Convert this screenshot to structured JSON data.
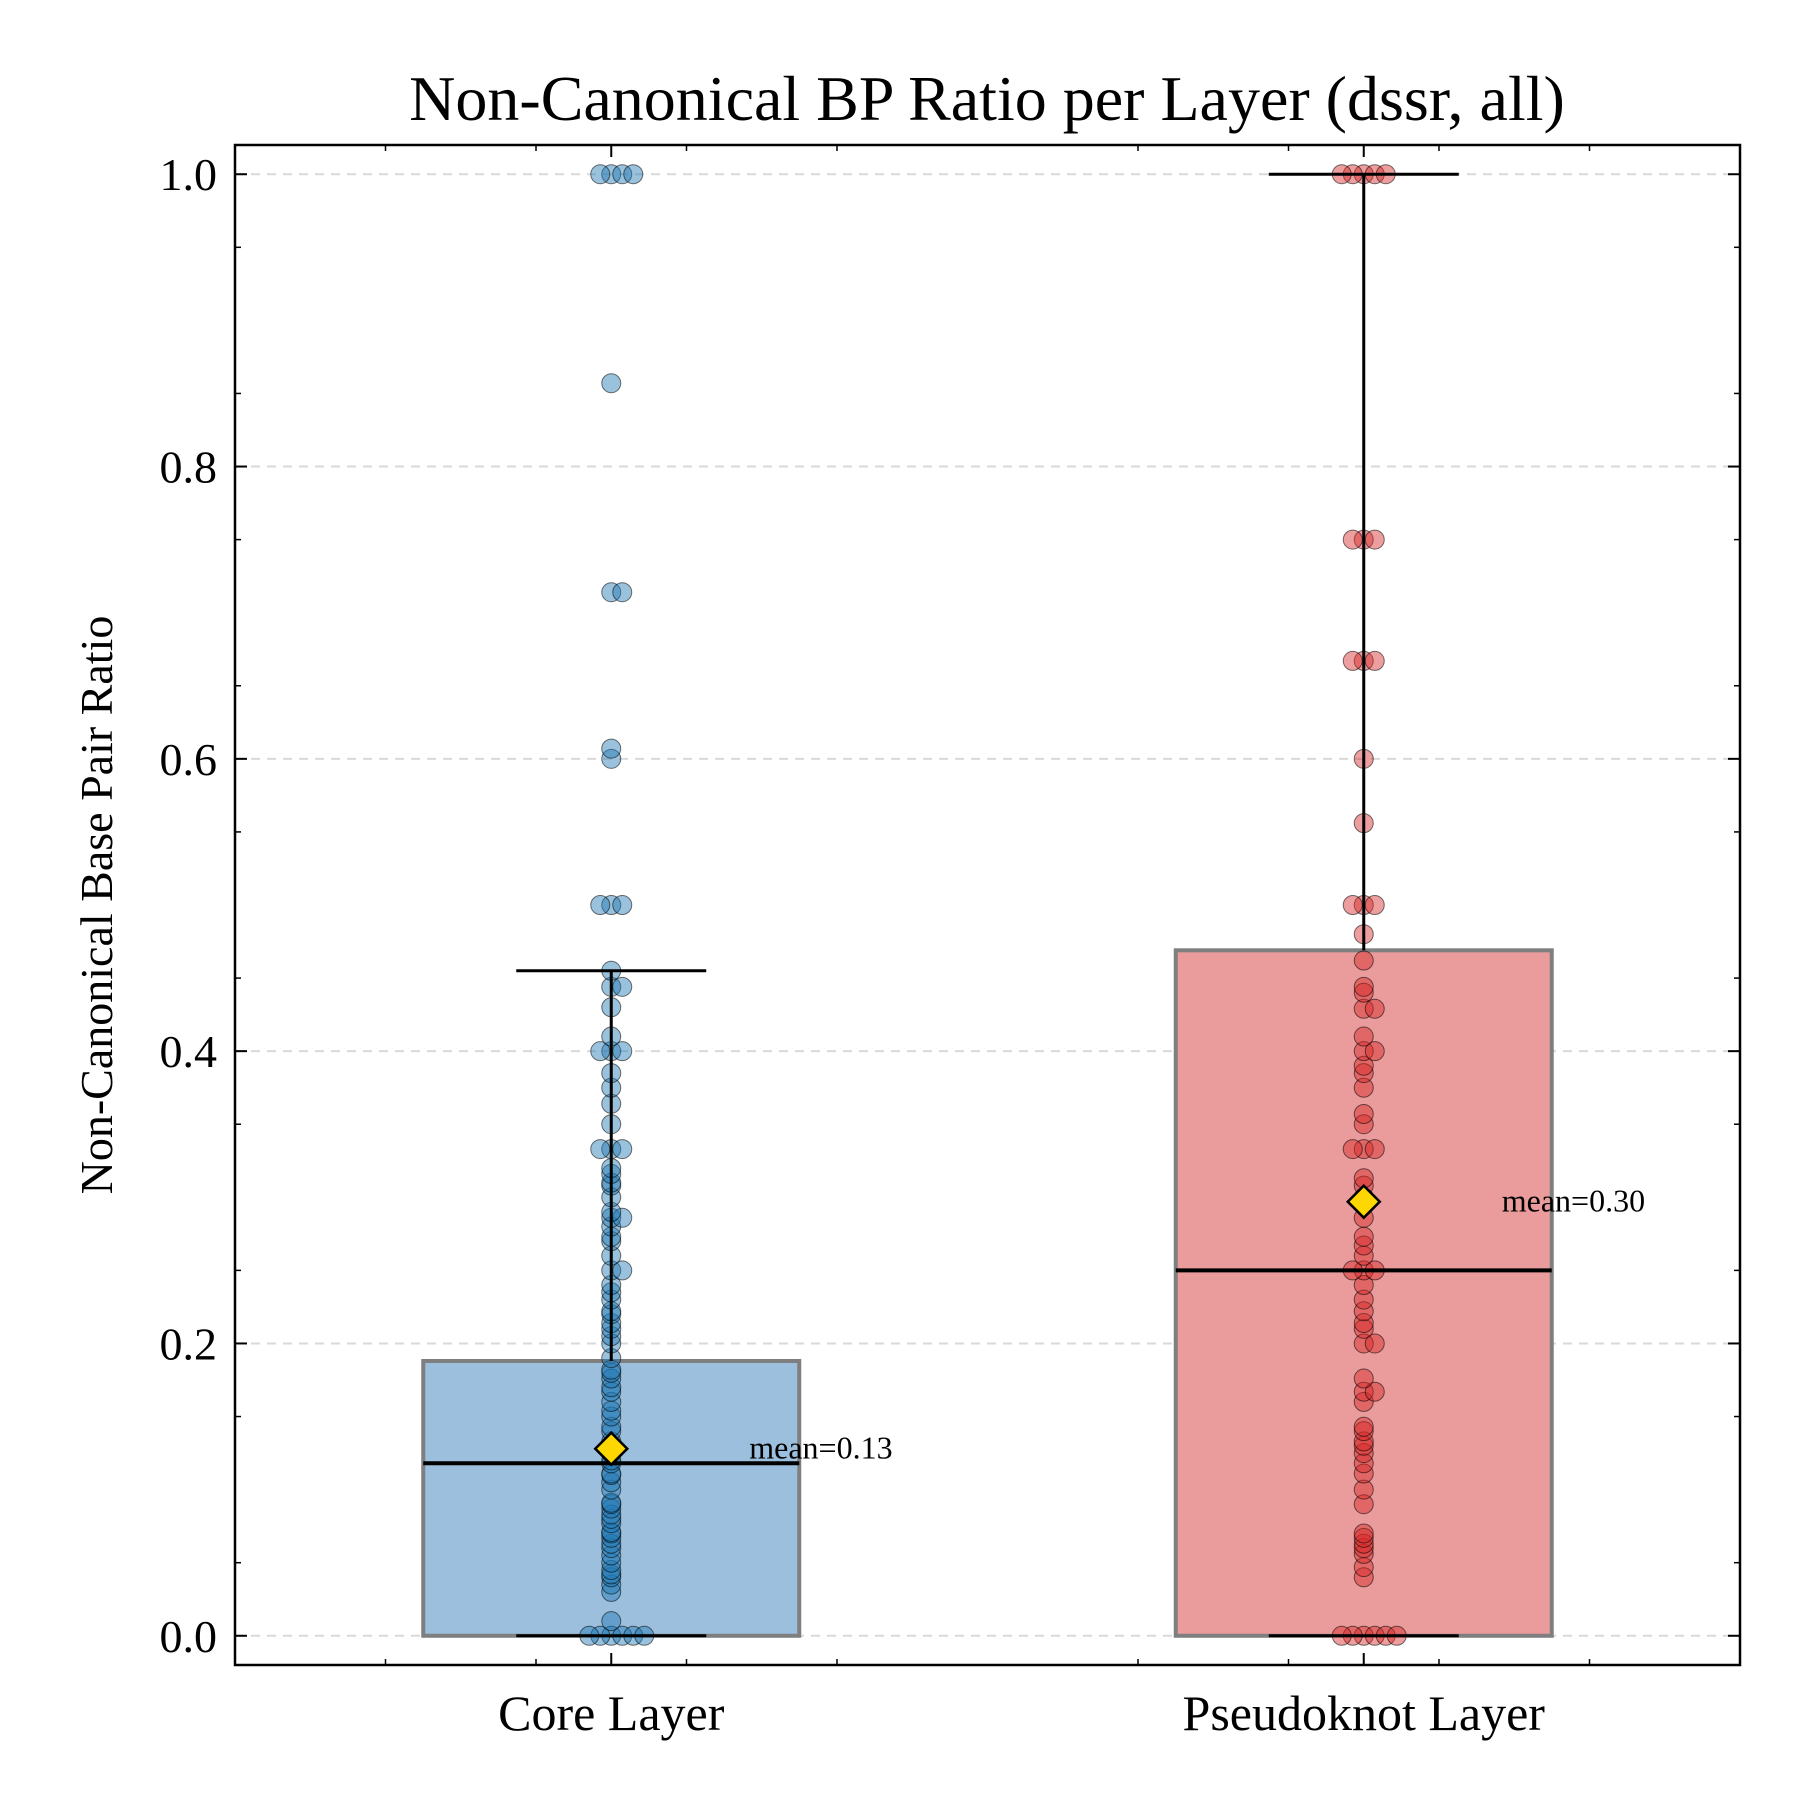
{
  "chart_data": {
    "type": "box",
    "title": "Non-Canonical BP Ratio per Layer (dssr, all)",
    "xlabel": "",
    "ylabel": "Non-Canonical Base Pair Ratio",
    "ylim": [
      -0.02,
      1.02
    ],
    "yticks": [
      "0.0",
      "0.2",
      "0.4",
      "0.6",
      "0.8",
      "1.0"
    ],
    "grid": "horizontal dashed",
    "categories": [
      "Core Layer",
      "Pseudoknot Layer"
    ],
    "series": [
      {
        "category": "Core Layer",
        "color": "#1f77b4",
        "box_color": "#9bbfdd",
        "q1": 0.0,
        "median": 0.118,
        "q3": 0.188,
        "whisker_low": 0.0,
        "whisker_high": 0.455,
        "mean": 0.128,
        "mean_label": "mean=0.13",
        "points": [
          0,
          0,
          0,
          0,
          0,
          0,
          0.01,
          0.03,
          0.035,
          0.04,
          0.042,
          0.045,
          0.05,
          0.055,
          0.06,
          0.063,
          0.067,
          0.07,
          0.071,
          0.077,
          0.08,
          0.083,
          0.087,
          0.09,
          0.091,
          0.1,
          0.105,
          0.11,
          0.111,
          0.118,
          0.12,
          0.125,
          0.13,
          0.133,
          0.14,
          0.143,
          0.15,
          0.154,
          0.16,
          0.167,
          0.17,
          0.176,
          0.18,
          0.182,
          0.19,
          0.2,
          0.205,
          0.21,
          0.214,
          0.22,
          0.222,
          0.23,
          0.235,
          0.24,
          0.25,
          0.25,
          0.26,
          0.27,
          0.273,
          0.28,
          0.286,
          0.286,
          0.29,
          0.3,
          0.308,
          0.31,
          0.316,
          0.32,
          0.333,
          0.333,
          0.333,
          0.35,
          0.364,
          0.375,
          0.385,
          0.4,
          0.4,
          0.4,
          0.41,
          0.43,
          0.444,
          0.444,
          0.455,
          0.5,
          0.5,
          0.5,
          0.6,
          0.607,
          0.714,
          0.714,
          0.857,
          1.0,
          1.0,
          1.0,
          1.0
        ]
      },
      {
        "category": "Pseudoknot Layer",
        "color": "#d62728",
        "box_color": "#ea9b9c",
        "q1": 0.0,
        "median": 0.25,
        "q3": 0.469,
        "whisker_low": 0.0,
        "whisker_high": 1.0,
        "mean": 0.297,
        "mean_label": "mean=0.30",
        "points": [
          0,
          0,
          0,
          0,
          0,
          0,
          0.04,
          0.047,
          0.056,
          0.06,
          0.063,
          0.067,
          0.07,
          0.09,
          0.1,
          0.111,
          0.118,
          0.125,
          0.13,
          0.133,
          0.14,
          0.143,
          0.16,
          0.167,
          0.167,
          0.176,
          0.2,
          0.2,
          0.21,
          0.214,
          0.222,
          0.23,
          0.24,
          0.25,
          0.25,
          0.25,
          0.26,
          0.267,
          0.273,
          0.286,
          0.3,
          0.308,
          0.313,
          0.333,
          0.333,
          0.333,
          0.35,
          0.357,
          0.375,
          0.385,
          0.39,
          0.4,
          0.4,
          0.41,
          0.429,
          0.429,
          0.44,
          0.444,
          0.462,
          0.48,
          0.5,
          0.5,
          0.5,
          0.556,
          0.6,
          0.667,
          0.667,
          0.667,
          0.75,
          0.75,
          0.75,
          1.0,
          1.0,
          1.0,
          1.0,
          1.0
        ]
      }
    ]
  }
}
